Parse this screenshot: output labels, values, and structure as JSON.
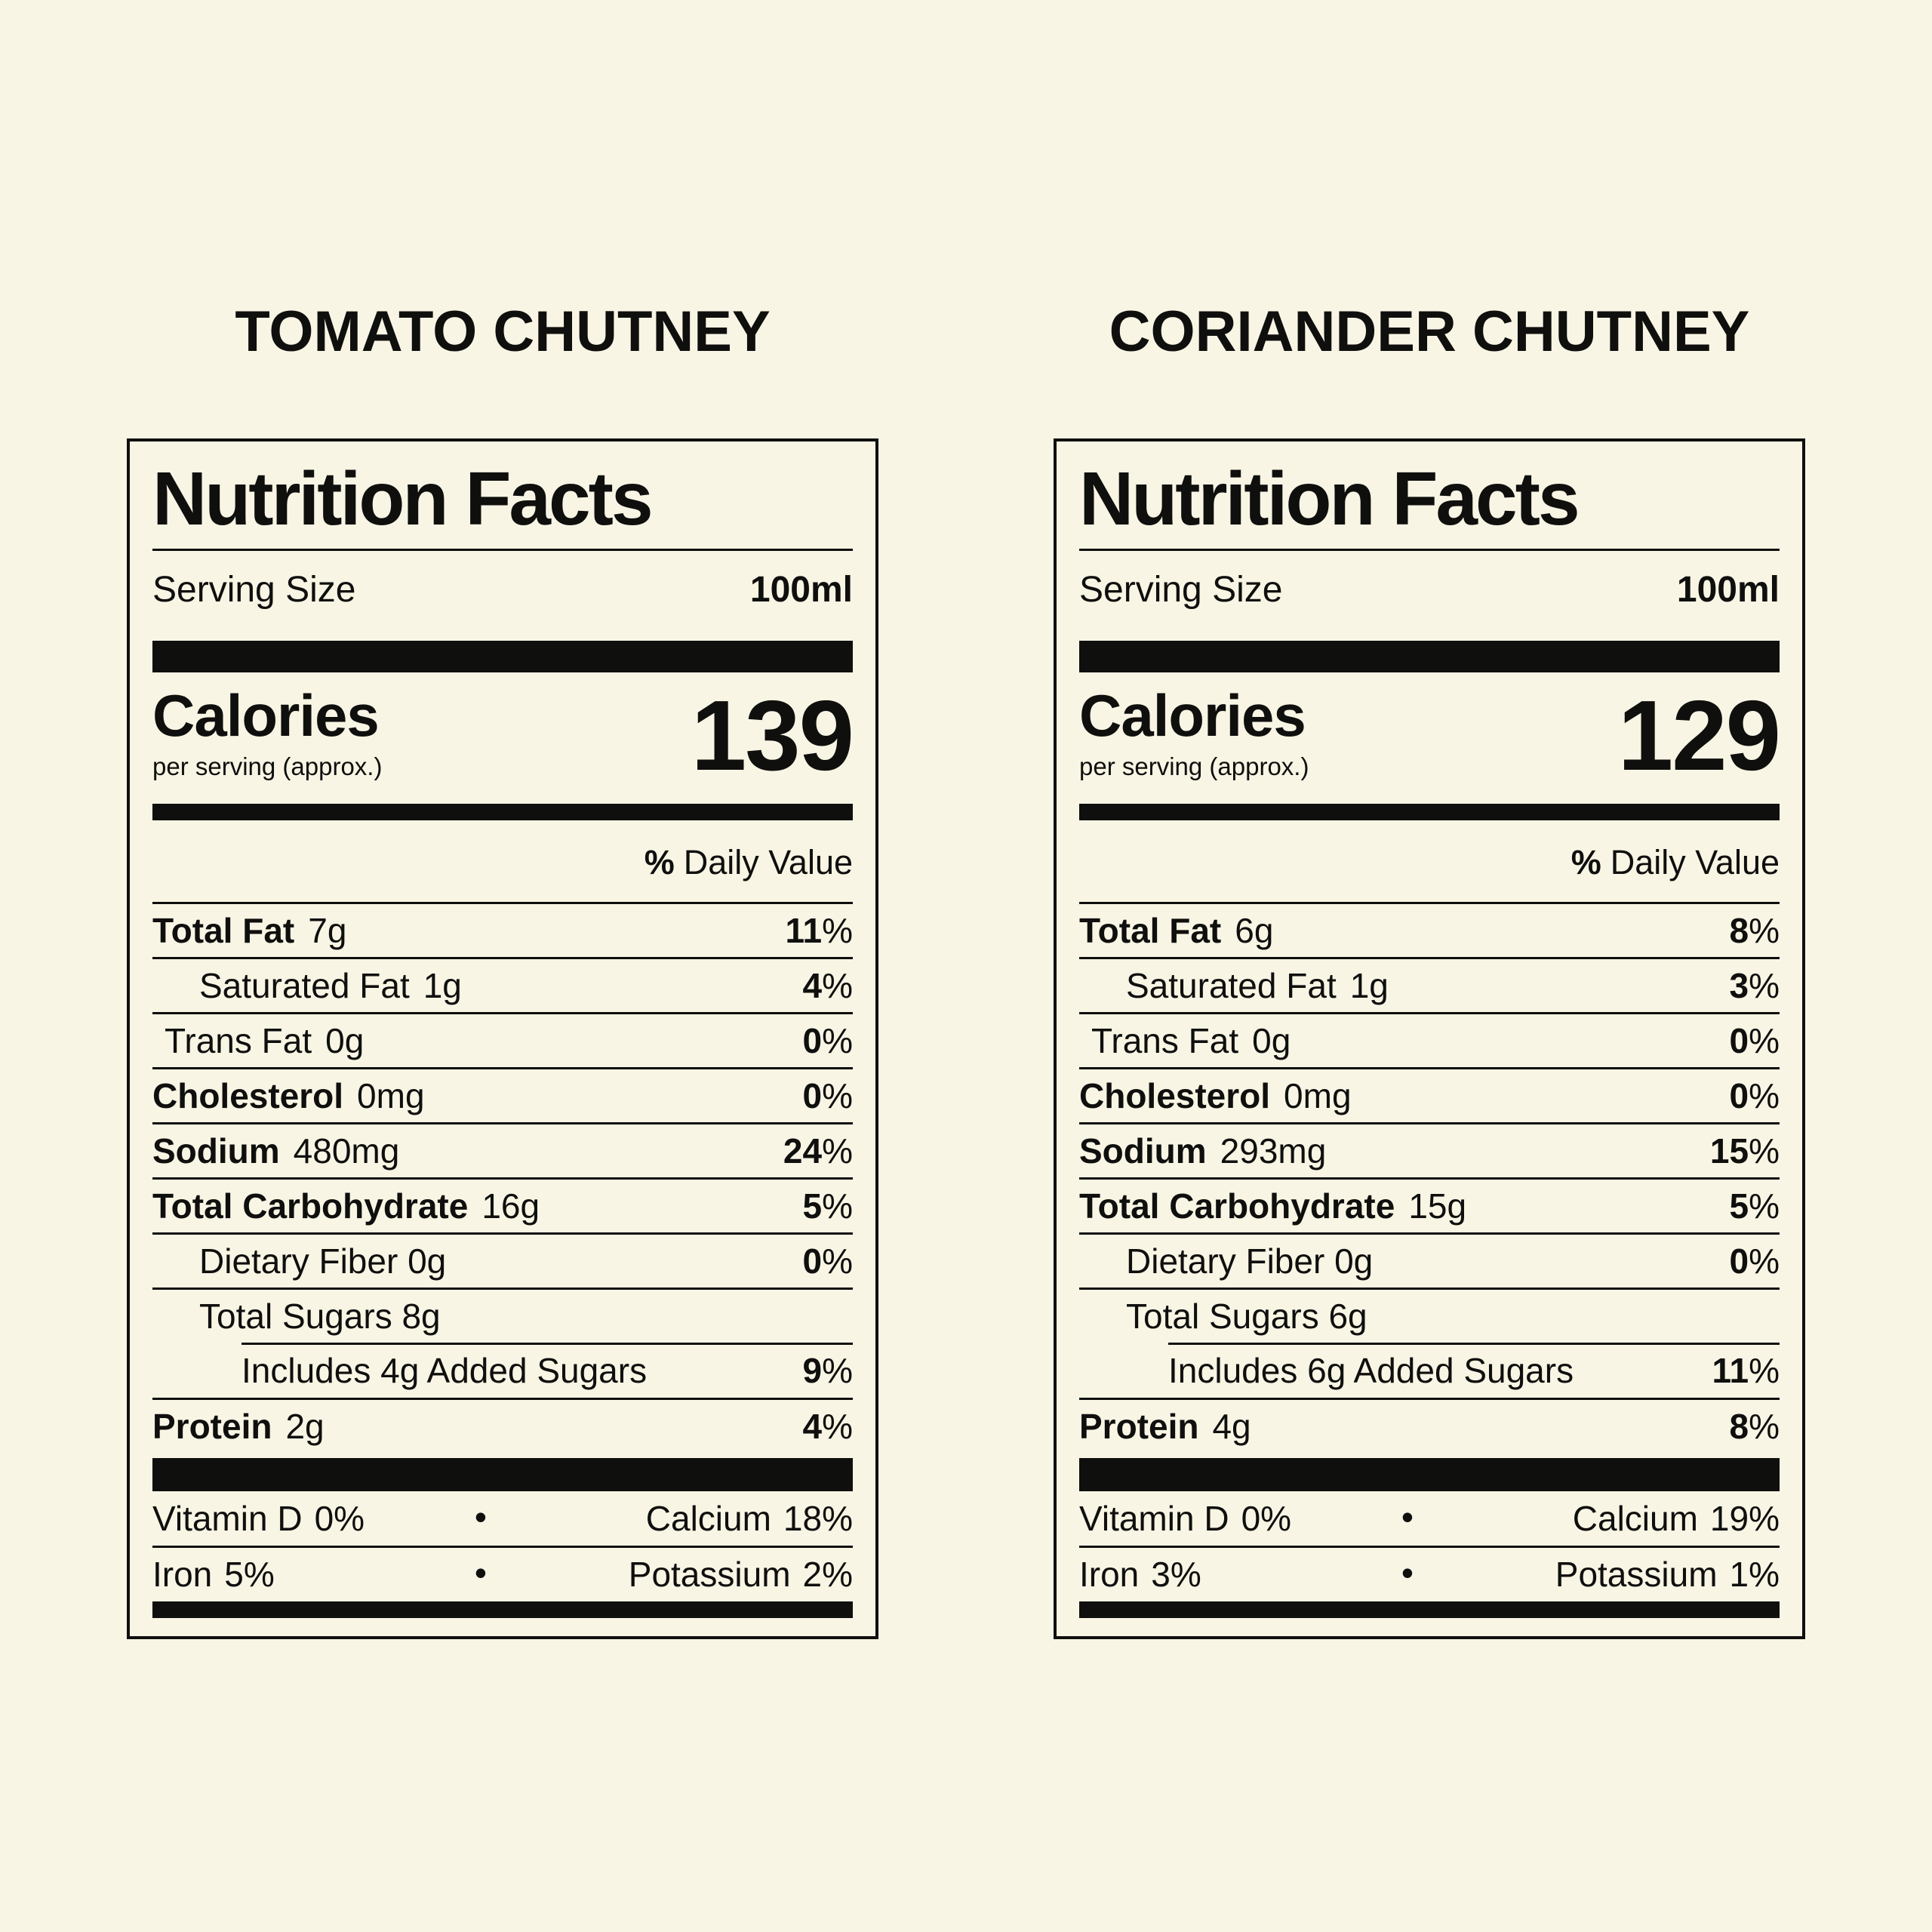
{
  "page": {
    "background_color": "#f8f5e4",
    "ink_color": "#0f0f0e"
  },
  "labels": [
    {
      "product_title": "TOMATO CHUTNEY",
      "heading": "Nutrition Facts",
      "serving": {
        "label": "Serving Size",
        "value": "100ml"
      },
      "calories": {
        "label": "Calories",
        "sublabel": "per serving (approx.)",
        "value": "139"
      },
      "daily_value_header": {
        "percent_sign": "%",
        "text": "Daily Value"
      },
      "nutrient_rows": [
        {
          "name": "Total Fat",
          "amount": "7g",
          "dv_value": "11",
          "dv_unit": "%",
          "name_bold": true,
          "indent": 0,
          "rule_indent": false
        },
        {
          "name": "Saturated Fat",
          "amount": "1g",
          "dv_value": "4",
          "dv_unit": "%",
          "name_bold": false,
          "indent": 2,
          "rule_indent": false
        },
        {
          "name": "Trans Fat",
          "amount": "0g",
          "dv_value": "0",
          "dv_unit": "%",
          "name_bold": false,
          "indent": 1,
          "rule_indent": false
        },
        {
          "name": "Cholesterol",
          "amount": "0mg",
          "dv_value": "0",
          "dv_unit": "%",
          "name_bold": true,
          "indent": 0,
          "rule_indent": false
        },
        {
          "name": "Sodium",
          "amount": "480mg",
          "dv_value": "24",
          "dv_unit": "%",
          "name_bold": true,
          "indent": 0,
          "rule_indent": false
        },
        {
          "name": "Total Carbohydrate",
          "amount": "16g",
          "dv_value": "5",
          "dv_unit": "%",
          "name_bold": true,
          "indent": 0,
          "rule_indent": false
        },
        {
          "name": "Dietary Fiber 0g",
          "amount": "",
          "dv_value": "0",
          "dv_unit": "%",
          "name_bold": false,
          "indent": 2,
          "rule_indent": false
        },
        {
          "name": "Total Sugars 8g",
          "amount": "",
          "dv_value": "",
          "dv_unit": "",
          "name_bold": false,
          "indent": 2,
          "rule_indent": false
        },
        {
          "name": "Includes 4g Added Sugars",
          "amount": "",
          "dv_value": "9",
          "dv_unit": "%",
          "name_bold": false,
          "indent": 3,
          "rule_indent": true
        },
        {
          "name": "Protein",
          "amount": "2g",
          "dv_value": "4",
          "dv_unit": "%",
          "name_bold": true,
          "indent": 0,
          "rule_indent": false
        }
      ],
      "micronutrients": [
        {
          "left": {
            "name": "Vitamin D",
            "value": "0%"
          },
          "bullet": "•",
          "right": {
            "name": "Calcium",
            "value": "18%"
          }
        },
        {
          "left": {
            "name": "Iron",
            "value": "5%"
          },
          "bullet": "•",
          "right": {
            "name": "Potassium",
            "value": "2%"
          }
        }
      ]
    },
    {
      "product_title": "CORIANDER CHUTNEY",
      "heading": "Nutrition Facts",
      "serving": {
        "label": "Serving Size",
        "value": "100ml"
      },
      "calories": {
        "label": "Calories",
        "sublabel": "per serving (approx.)",
        "value": "129"
      },
      "daily_value_header": {
        "percent_sign": "%",
        "text": "Daily Value"
      },
      "nutrient_rows": [
        {
          "name": "Total Fat",
          "amount": "6g",
          "dv_value": "8",
          "dv_unit": "%",
          "name_bold": true,
          "indent": 0,
          "rule_indent": false
        },
        {
          "name": "Saturated Fat",
          "amount": "1g",
          "dv_value": "3",
          "dv_unit": "%",
          "name_bold": false,
          "indent": 2,
          "rule_indent": false
        },
        {
          "name": "Trans Fat",
          "amount": "0g",
          "dv_value": "0",
          "dv_unit": "%",
          "name_bold": false,
          "indent": 1,
          "rule_indent": false
        },
        {
          "name": "Cholesterol",
          "amount": "0mg",
          "dv_value": "0",
          "dv_unit": "%",
          "name_bold": true,
          "indent": 0,
          "rule_indent": false
        },
        {
          "name": "Sodium",
          "amount": "293mg",
          "dv_value": "15",
          "dv_unit": "%",
          "name_bold": true,
          "indent": 0,
          "rule_indent": false
        },
        {
          "name": "Total Carbohydrate",
          "amount": "15g",
          "dv_value": "5",
          "dv_unit": "%",
          "name_bold": true,
          "indent": 0,
          "rule_indent": false
        },
        {
          "name": "Dietary Fiber 0g",
          "amount": "",
          "dv_value": "0",
          "dv_unit": "%",
          "name_bold": false,
          "indent": 2,
          "rule_indent": false
        },
        {
          "name": "Total Sugars 6g",
          "amount": "",
          "dv_value": "",
          "dv_unit": "",
          "name_bold": false,
          "indent": 2,
          "rule_indent": false
        },
        {
          "name": "Includes 6g Added Sugars",
          "amount": "",
          "dv_value": "11",
          "dv_unit": "%",
          "name_bold": false,
          "indent": 3,
          "rule_indent": true
        },
        {
          "name": "Protein",
          "amount": "4g",
          "dv_value": "8",
          "dv_unit": "%",
          "name_bold": true,
          "indent": 0,
          "rule_indent": false
        }
      ],
      "micronutrients": [
        {
          "left": {
            "name": "Vitamin D",
            "value": "0%"
          },
          "bullet": "•",
          "right": {
            "name": "Calcium",
            "value": "19%"
          }
        },
        {
          "left": {
            "name": "Iron",
            "value": "3%"
          },
          "bullet": "•",
          "right": {
            "name": "Potassium",
            "value": "1%"
          }
        }
      ]
    }
  ]
}
